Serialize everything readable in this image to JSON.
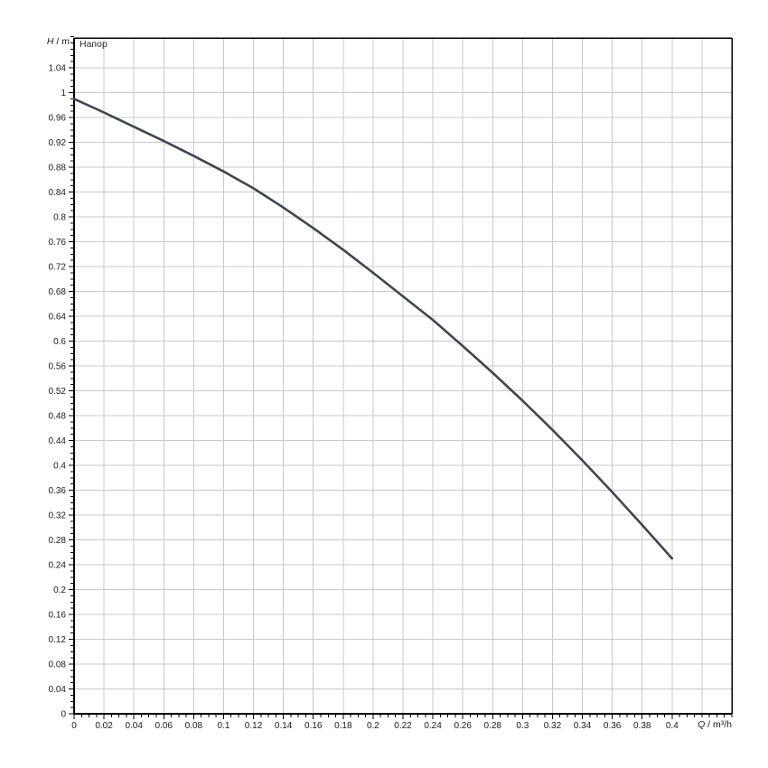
{
  "page": {
    "background": "#ffffff"
  },
  "chart_data": {
    "type": "line",
    "title": "Напор",
    "x_axis": {
      "symbol": "Q",
      "separator": " / ",
      "unit": "m³/h",
      "label_text": "Q / m³/h",
      "range": [
        0,
        0.44
      ],
      "major_step": 0.02,
      "minor_step": 0.005,
      "tick_labels": [
        "0",
        "0.02",
        "0.04",
        "0.06",
        "0.08",
        "0.1",
        "0.12",
        "0.14",
        "0.16",
        "0.18",
        "0.2",
        "0.22",
        "0.24",
        "0.26",
        "0.28",
        "0.3",
        "0.32",
        "0.34",
        "0.36",
        "0.38",
        "0.4"
      ]
    },
    "y_axis": {
      "symbol": "H",
      "separator": " / ",
      "unit": "m",
      "label_text": "H / m",
      "range": [
        0,
        1.088
      ],
      "major_step": 0.04,
      "minor_step": 0.01,
      "tick_labels": [
        "0",
        "0.04",
        "0.08",
        "0.12",
        "0.16",
        "0.2",
        "0.24",
        "0.28",
        "0.32",
        "0.36",
        "0.4",
        "0.44",
        "0.48",
        "0.52",
        "0.56",
        "0.6",
        "0.64",
        "0.68",
        "0.72",
        "0.76",
        "0.8",
        "0.84",
        "0.88",
        "0.92",
        "0.96",
        "1",
        "1.04"
      ]
    },
    "grid": true,
    "legend_position": "top-left-inside",
    "series": [
      {
        "name": "Напор",
        "x": [
          0,
          0.02,
          0.04,
          0.06,
          0.08,
          0.1,
          0.12,
          0.14,
          0.16,
          0.18,
          0.2,
          0.22,
          0.24,
          0.26,
          0.28,
          0.3,
          0.32,
          0.34,
          0.36,
          0.38,
          0.4
        ],
        "y": [
          0.99,
          0.968,
          0.945,
          0.922,
          0.898,
          0.873,
          0.846,
          0.815,
          0.782,
          0.747,
          0.71,
          0.672,
          0.634,
          0.592,
          0.549,
          0.504,
          0.457,
          0.408,
          0.357,
          0.304,
          0.25
        ]
      }
    ],
    "colors": {
      "curve": "#40454d",
      "grid": "#c9c9c9",
      "axis": "#000000",
      "text": "#1b1b1b",
      "background": "#ffffff"
    }
  }
}
